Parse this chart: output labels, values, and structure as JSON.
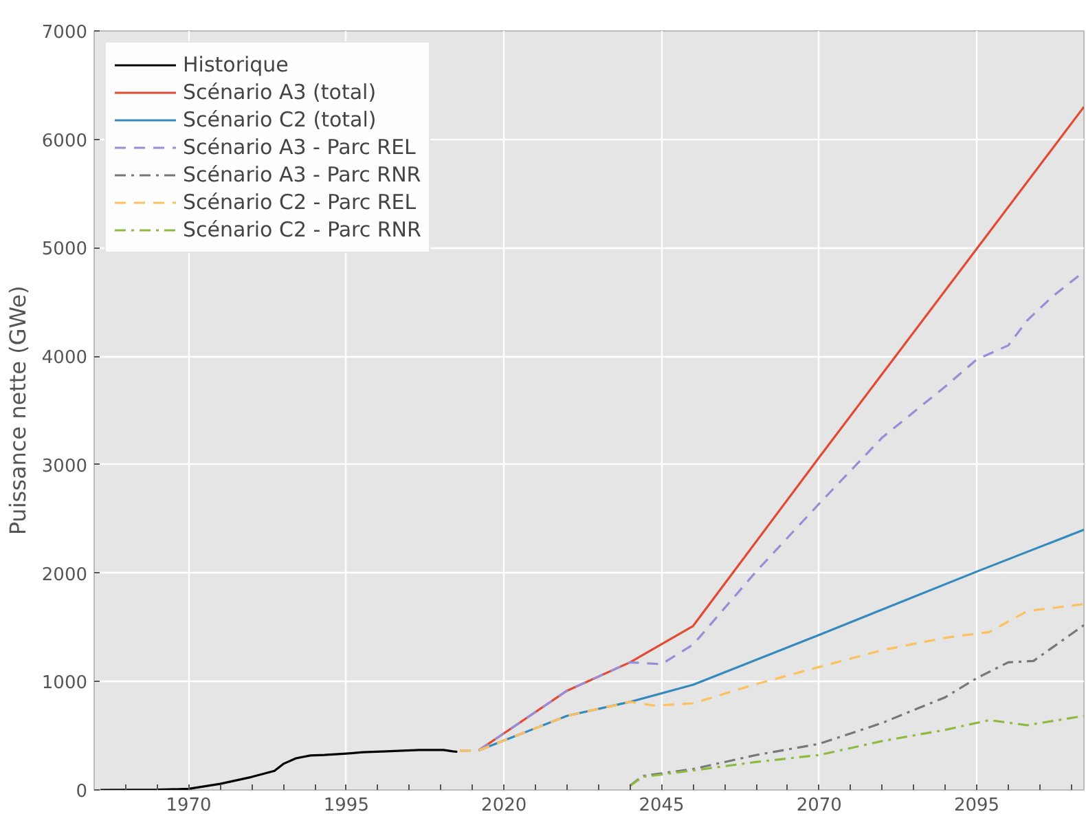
{
  "chart_data": {
    "type": "line",
    "ylabel": "Puissance nette (GWe)",
    "xlim": [
      1955,
      2112
    ],
    "ylim": [
      0,
      7000
    ],
    "xticks": [
      {
        "value": 1960,
        "label": null
      },
      {
        "value": 1965,
        "label": null
      },
      1970,
      {
        "value": 1975,
        "label": null
      },
      {
        "value": 1980,
        "label": null
      },
      {
        "value": 1985,
        "label": null
      },
      {
        "value": 1990,
        "label": null
      },
      1995,
      {
        "value": 2000,
        "label": null
      },
      {
        "value": 2005,
        "label": null
      },
      {
        "value": 2010,
        "label": null
      },
      {
        "value": 2015,
        "label": null
      },
      2020,
      {
        "value": 2025,
        "label": null
      },
      {
        "value": 2030,
        "label": null
      },
      {
        "value": 2035,
        "label": null
      },
      {
        "value": 2040,
        "label": null
      },
      2045,
      {
        "value": 2050,
        "label": null
      },
      {
        "value": 2055,
        "label": null
      },
      {
        "value": 2060,
        "label": null
      },
      {
        "value": 2065,
        "label": null
      },
      2070,
      {
        "value": 2075,
        "label": null
      },
      {
        "value": 2080,
        "label": null
      },
      {
        "value": 2085,
        "label": null
      },
      {
        "value": 2090,
        "label": null
      },
      2095,
      {
        "value": 2100,
        "label": null
      },
      {
        "value": 2105,
        "label": null
      },
      {
        "value": 2110,
        "label": null
      }
    ],
    "yticks": [
      0,
      1000,
      2000,
      3000,
      4000,
      5000,
      6000,
      7000
    ],
    "grid": true,
    "legend": "top left",
    "series": [
      {
        "name": "Historique",
        "color": "#000000",
        "line_style": "solid",
        "x": [
          1956,
          1965,
          1970,
          1975,
          1980,
          1983.6,
          1985,
          1987,
          1989.3,
          1991.5,
          1995,
          1997.6,
          2001.3,
          2006.6,
          2010.4,
          2011.9,
          2012.6
        ],
        "values": [
          0,
          2,
          10,
          56,
          120,
          176,
          240,
          292,
          318,
          322,
          335,
          348,
          356,
          369,
          369,
          356,
          352
        ]
      },
      {
        "name": "Scénario A3 (total)",
        "color": "#e24a33",
        "line_style": "solid",
        "x": [
          2016,
          2030,
          2040,
          2050,
          2070,
          2112
        ],
        "values": [
          365,
          915,
          1177,
          1512,
          3067,
          6300
        ]
      },
      {
        "name": "Scénario C2 (total)",
        "color": "#348abd",
        "line_style": "solid",
        "x": [
          2016,
          2030,
          2040,
          2050,
          2070,
          2095,
          2112
        ],
        "values": [
          365,
          683,
          812,
          970,
          1430,
          2014,
          2400
        ]
      },
      {
        "name": "Scénario A3 - Parc REL",
        "color": "#988ed5",
        "line_style": "dashed",
        "x": [
          2013,
          2016,
          2030,
          2040,
          2045,
          2050,
          2060,
          2070,
          2080,
          2090,
          2095,
          2100,
          2103,
          2107,
          2112
        ],
        "values": [
          360,
          365,
          915,
          1177,
          1160,
          1340,
          2014,
          2640,
          3250,
          3720,
          3970,
          4100,
          4330,
          4550,
          4780
        ]
      },
      {
        "name": "Scénario A3 - Parc RNR",
        "color": "#777777",
        "line_style": "dashdot",
        "x": [
          2040,
          2042,
          2050,
          2060,
          2070,
          2080,
          2090,
          2095,
          2100,
          2104,
          2112
        ],
        "values": [
          39,
          129,
          193,
          322,
          425,
          618,
          855,
          1031,
          1177,
          1190,
          1520
        ]
      },
      {
        "name": "Scénario C2 - Parc REL",
        "color": "#fbc15e",
        "line_style": "dashed",
        "x": [
          2013,
          2016,
          2030,
          2040,
          2044,
          2050,
          2060,
          2070,
          2080,
          2090,
          2097,
          2103,
          2112
        ],
        "values": [
          360,
          365,
          683,
          812,
          777,
          799,
          976,
          1134,
          1289,
          1404,
          1456,
          1650,
          1714
        ]
      },
      {
        "name": "Scénario C2 - Parc RNR",
        "color": "#8eba42",
        "line_style": "dashdot",
        "x": [
          2040,
          2042,
          2050,
          2060,
          2070,
          2080,
          2090,
          2097,
          2103,
          2112
        ],
        "values": [
          39,
          120,
          180,
          258,
          322,
          451,
          554,
          644,
          597,
          683
        ]
      }
    ]
  }
}
